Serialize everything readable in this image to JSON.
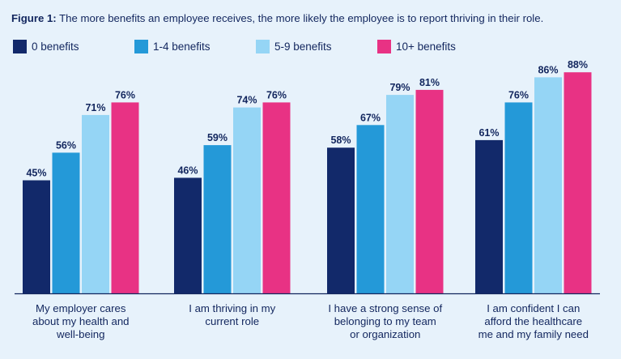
{
  "title": {
    "lead": "Figure 1:",
    "text": " The more benefits an employee receives, the more likely the employee is to report thriving in their role."
  },
  "colors": {
    "background": "#e7f2fb",
    "axis": "#12265e",
    "text": "#12265e"
  },
  "chart_data": {
    "type": "bar",
    "title": "The more benefits an employee receives, the more likely the employee is to report thriving in their role.",
    "categories": [
      "My employer cares about my health and well-being",
      "I am thriving in my current role",
      "I have a strong sense of belonging to my team or organization",
      "I am confident I can afford the healthcare me and my family need"
    ],
    "category_lines": [
      [
        "My employer cares",
        "about my health and",
        "well-being"
      ],
      [
        "I am thriving in my",
        "current role"
      ],
      [
        "I have a strong sense of",
        "belonging to my team",
        "or organization"
      ],
      [
        "I am confident I can",
        "afford the healthcare",
        "me and my family need"
      ]
    ],
    "series": [
      {
        "name": "0 benefits",
        "color": "#12296a",
        "values": [
          45,
          46,
          58,
          61
        ],
        "labels": [
          "45%",
          "46%",
          "58%",
          "61%"
        ]
      },
      {
        "name": "1-4 benefits",
        "color": "#2499d8",
        "values": [
          56,
          59,
          67,
          76
        ],
        "labels": [
          "56%",
          "59%",
          "67%",
          "76%"
        ]
      },
      {
        "name": "5-9 benefits",
        "color": "#95d5f5",
        "values": [
          71,
          74,
          79,
          86
        ],
        "labels": [
          "71%",
          "74%",
          "79%",
          "86%"
        ]
      },
      {
        "name": "10+ benefits",
        "color": "#e83284",
        "values": [
          76,
          76,
          81,
          88
        ],
        "labels": [
          "76%",
          "76%",
          "81%",
          "88%"
        ]
      }
    ],
    "ylim": [
      0,
      100
    ],
    "grid": false,
    "legend": "top-left",
    "value_labels": "above-bars"
  }
}
